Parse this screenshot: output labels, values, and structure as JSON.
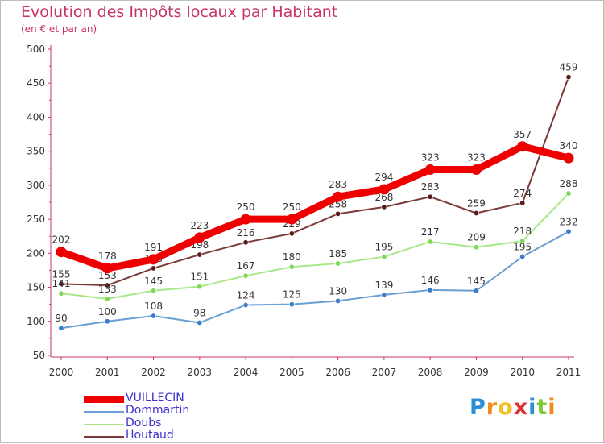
{
  "header": {
    "title": "Evolution des Impôts locaux par Habitant",
    "subtitle": "(en € et par an)"
  },
  "chart_data": {
    "type": "line",
    "title": "Evolution des Impôts locaux par Habitant",
    "subtitle": "(en € et par an)",
    "xlabel": "",
    "ylabel": "",
    "ylim": [
      50,
      500
    ],
    "yticks": [
      50,
      100,
      150,
      200,
      250,
      300,
      350,
      400,
      450,
      500
    ],
    "categories": [
      "2000",
      "2001",
      "2002",
      "2003",
      "2004",
      "2005",
      "2006",
      "2007",
      "2008",
      "2009",
      "2010",
      "2011"
    ],
    "series": [
      {
        "name": "VUILLECIN",
        "color": "#ee0000",
        "values": [
          202,
          178,
          191,
          223,
          250,
          250,
          283,
          294,
          323,
          323,
          357,
          340
        ],
        "labels": [
          "202",
          "178",
          "191",
          "223",
          "250",
          "250",
          "283",
          "294",
          "323",
          "323",
          "357",
          "340"
        ]
      },
      {
        "name": "Dommartin",
        "color": "#6a9fd4",
        "marker": "#3a7cc8",
        "values": [
          90,
          100,
          108,
          98,
          124,
          125,
          130,
          139,
          146,
          145,
          195,
          232
        ],
        "labels": [
          "90",
          "100",
          "108",
          "98",
          "124",
          "125",
          "130",
          "139",
          "146",
          "145",
          "195",
          "232"
        ]
      },
      {
        "name": "Doubs",
        "color": "#a8e88a",
        "marker": "#7ed957",
        "values": [
          141,
          133,
          145,
          151,
          167,
          180,
          185,
          195,
          217,
          209,
          218,
          288
        ],
        "labels": [
          "141",
          "133",
          "145",
          "151",
          "167",
          "180",
          "185",
          "195",
          "217",
          "209",
          "218",
          "288"
        ]
      },
      {
        "name": "Houtaud",
        "color": "#7a3a3a",
        "marker": "#5a1a1a",
        "values": [
          155,
          153,
          178,
          198,
          216,
          229,
          258,
          268,
          283,
          259,
          274,
          459
        ],
        "labels": [
          "155",
          "153",
          "178",
          "198",
          "216",
          "229",
          "258",
          "268",
          "283",
          "259",
          "274",
          "459"
        ]
      }
    ]
  },
  "legend": [
    {
      "label": "VUILLECIN",
      "color": "#ee0000"
    },
    {
      "label": "Dommartin",
      "color": "#6a9fd4"
    },
    {
      "label": "Doubs",
      "color": "#a8e88a"
    },
    {
      "label": "Houtaud",
      "color": "#7a3a3a"
    }
  ],
  "logo": {
    "letters": [
      "P",
      "r",
      "o",
      "x",
      "i",
      "t",
      "i"
    ],
    "colors": [
      "#2a8fd8",
      "#f08a1c",
      "#f0c020",
      "#e03030",
      "#2a8fd8",
      "#7ec83a",
      "#f08a1c"
    ]
  }
}
